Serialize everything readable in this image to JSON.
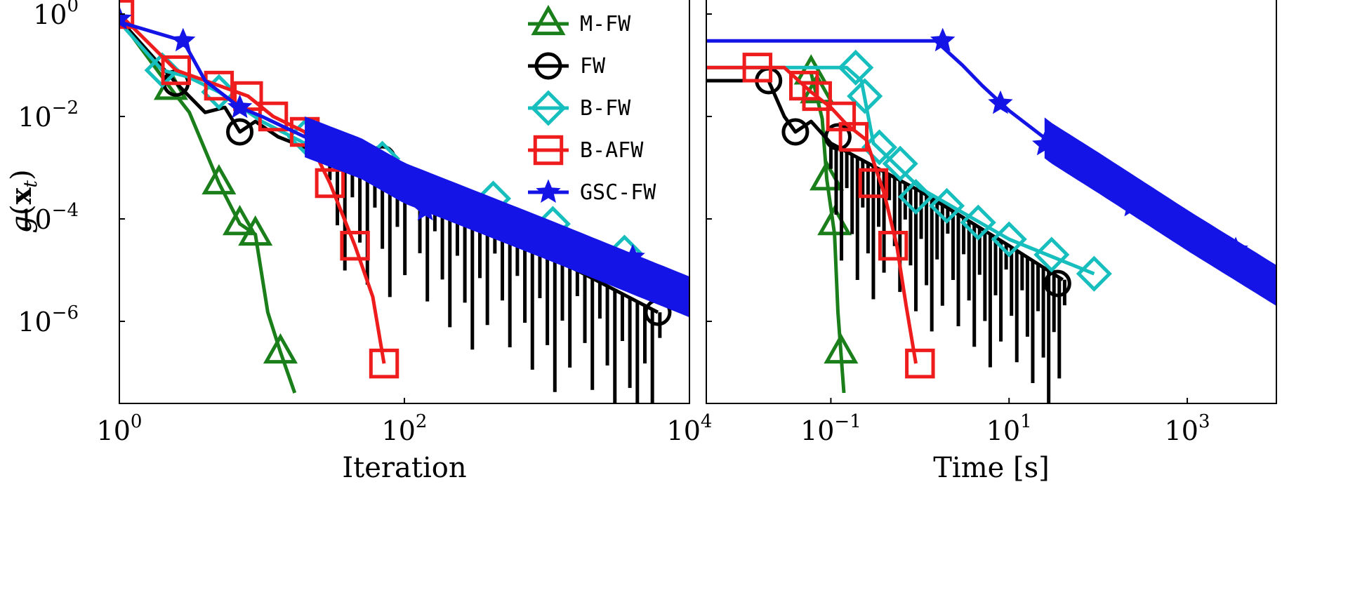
{
  "chart_data": [
    {
      "type": "line",
      "xscale": "log",
      "yscale": "log",
      "xlim": [
        1,
        10000
      ],
      "ylim": [
        3e-08,
        1.2
      ],
      "xlabel": "Iteration",
      "ylabel": "g(x_t)",
      "x_ticks": [
        {
          "value": 1,
          "base": "10",
          "exp": "0"
        },
        {
          "value": 100,
          "base": "10",
          "exp": "2"
        },
        {
          "value": 10000,
          "base": "10",
          "exp": "4"
        }
      ],
      "y_ticks": [
        {
          "value": 1,
          "base": "10",
          "exp": "0"
        },
        {
          "value": 0.01,
          "base": "10",
          "exp": "−2"
        },
        {
          "value": 0.0001,
          "base": "10",
          "exp": "−4"
        },
        {
          "value": 1e-06,
          "base": "10",
          "exp": "−6"
        }
      ],
      "series": [
        {
          "name": "M-FW",
          "color": "#1a7f1a",
          "marker": "triangle",
          "points": [
            [
              1,
              0.8
            ],
            [
              2.3,
              0.035
            ],
            [
              3.1,
              0.012
            ],
            [
              5,
              0.0005
            ],
            [
              7,
              8e-05
            ],
            [
              9,
              5e-05
            ],
            [
              11,
              1.5e-06
            ],
            [
              13.5,
              2.5e-07
            ],
            [
              17,
              4e-08
            ]
          ],
          "markers": [
            [
              2.3,
              0.035
            ],
            [
              5,
              0.0005
            ],
            [
              7,
              8e-05
            ],
            [
              9,
              5e-05
            ],
            [
              13.5,
              2.5e-07
            ]
          ]
        },
        {
          "name": "FW",
          "color": "#000000",
          "marker": "circle",
          "points": [
            [
              1,
              0.8
            ],
            [
              2.5,
              0.045
            ],
            [
              4,
              0.012
            ],
            [
              5.5,
              0.015
            ],
            [
              7,
              0.005
            ],
            [
              9,
              0.008
            ],
            [
              13,
              0.004
            ],
            [
              20,
              0.0025
            ],
            [
              50,
              0.0012
            ],
            [
              70,
              0.0015
            ],
            [
              200,
              0.0002
            ],
            [
              1000,
              2e-05
            ],
            [
              6000,
              1.5e-06
            ]
          ],
          "markers": [
            [
              2.5,
              0.045
            ],
            [
              7,
              0.005
            ],
            [
              70,
              0.0015
            ],
            [
              6000,
              1.5e-06
            ]
          ],
          "spikes": {
            "from": 30,
            "to": 6200,
            "count": 45,
            "depth_min": 0.5,
            "depth_max": 2.6
          }
        },
        {
          "name": "B-FW",
          "color": "#17bebe",
          "marker": "diamond",
          "points": [
            [
              1,
              0.7
            ],
            [
              2,
              0.08
            ],
            [
              3,
              0.06
            ],
            [
              5,
              0.03
            ],
            [
              10,
              0.008
            ],
            [
              20,
              0.003
            ],
            [
              100,
              0.0007
            ],
            [
              400,
              0.00015
            ],
            [
              1000,
              5e-05
            ],
            [
              3000,
              1.5e-05
            ],
            [
              10000,
              5e-06
            ]
          ],
          "markers": [
            [
              2,
              0.08
            ],
            [
              5,
              0.03
            ],
            [
              20,
              0.004
            ],
            [
              70,
              0.0015
            ],
            [
              420,
              0.00025
            ],
            [
              1100,
              8e-05
            ],
            [
              3500,
              2.2e-05
            ]
          ]
        },
        {
          "name": "B-AFW",
          "color": "#ee1c1c",
          "marker": "square",
          "points": [
            [
              1,
              1
            ],
            [
              2.5,
              0.08
            ],
            [
              5,
              0.04
            ],
            [
              8,
              0.025
            ],
            [
              12,
              0.01
            ],
            [
              20,
              0.005
            ],
            [
              30,
              0.0005
            ],
            [
              45,
              3e-05
            ],
            [
              60,
              3e-06
            ],
            [
              72,
              1.5e-07
            ]
          ],
          "markers": [
            [
              1,
              1
            ],
            [
              2.5,
              0.08
            ],
            [
              5,
              0.04
            ],
            [
              8,
              0.025
            ],
            [
              12,
              0.01
            ],
            [
              20,
              0.005
            ],
            [
              30,
              0.0005
            ],
            [
              45,
              3e-05
            ],
            [
              72,
              1.5e-07
            ]
          ]
        },
        {
          "name": "GSC-FW",
          "color": "#1414e6",
          "marker": "star",
          "points": [
            [
              1,
              0.7
            ],
            [
              2.8,
              0.3
            ],
            [
              4,
              0.05
            ],
            [
              7,
              0.015
            ],
            [
              10,
              0.01
            ],
            [
              20,
              0.004
            ],
            [
              50,
              0.0015
            ],
            [
              100,
              0.0005
            ],
            [
              1000,
              4e-05
            ],
            [
              10000,
              3e-06
            ]
          ],
          "markers": [
            [
              1,
              0.8
            ],
            [
              2.8,
              0.3
            ],
            [
              7,
              0.015
            ],
            [
              50,
              0.0015
            ],
            [
              140,
              0.00015
            ],
            [
              460,
              0.00012
            ],
            [
              1100,
              2.5e-05
            ],
            [
              4000,
              1.8e-05
            ]
          ],
          "band": {
            "from": 20,
            "to": 10000,
            "factor": 2.5
          }
        }
      ]
    },
    {
      "type": "line",
      "xscale": "log",
      "yscale": "log",
      "xlim": [
        0.004,
        10000
      ],
      "ylim": [
        3e-08,
        1.2
      ],
      "xlabel": "Time [s]",
      "x_ticks": [
        {
          "value": 0.1,
          "base": "10",
          "exp": "−1"
        },
        {
          "value": 10,
          "base": "10",
          "exp": "1"
        },
        {
          "value": 1000,
          "base": "10",
          "exp": "3"
        }
      ],
      "series": [
        {
          "name": "M-FW",
          "color": "#1a7f1a",
          "marker": "triangle",
          "points": [
            [
              0.06,
              0.07
            ],
            [
              0.08,
              0.009
            ],
            [
              0.09,
              0.0006
            ],
            [
              0.11,
              5e-05
            ],
            [
              0.12,
              1.5e-06
            ],
            [
              0.14,
              4e-08
            ]
          ],
          "markers": [
            [
              0.06,
              0.07
            ],
            [
              0.07,
              0.03
            ],
            [
              0.09,
              0.0006
            ],
            [
              0.11,
              8e-05
            ],
            [
              0.13,
              2.5e-07
            ]
          ]
        },
        {
          "name": "FW",
          "color": "#000000",
          "marker": "circle",
          "points": [
            [
              0.004,
              0.05
            ],
            [
              0.02,
              0.05
            ],
            [
              0.03,
              0.01
            ],
            [
              0.04,
              0.005
            ],
            [
              0.06,
              0.008
            ],
            [
              0.1,
              0.003
            ],
            [
              1,
              0.00035
            ],
            [
              10,
              3e-05
            ],
            [
              40,
              6.5e-06
            ]
          ],
          "markers": [
            [
              0.02,
              0.05
            ],
            [
              0.04,
              0.005
            ],
            [
              0.12,
              0.004
            ],
            [
              35,
              5.5e-06
            ]
          ],
          "spikes": {
            "from": 0.1,
            "to": 42,
            "count": 45,
            "depth_min": 0.5,
            "depth_max": 2.6
          }
        },
        {
          "name": "B-FW",
          "color": "#17bebe",
          "marker": "diamond",
          "points": [
            [
              0.004,
              0.09
            ],
            [
              0.15,
              0.09
            ],
            [
              0.22,
              0.05
            ],
            [
              0.3,
              0.003
            ],
            [
              1,
              0.0004
            ],
            [
              10,
              4e-05
            ],
            [
              90,
              8.5e-06
            ]
          ],
          "markers": [
            [
              0.19,
              0.09
            ],
            [
              0.24,
              0.025
            ],
            [
              0.35,
              0.0025
            ],
            [
              0.6,
              0.0012
            ],
            [
              0.9,
              0.00027
            ],
            [
              2,
              0.00018
            ],
            [
              4.5,
              8.5e-05
            ],
            [
              10,
              4e-05
            ],
            [
              30,
              2e-05
            ],
            [
              90,
              8.5e-06
            ]
          ]
        },
        {
          "name": "B-AFW",
          "color": "#ee1c1c",
          "marker": "square",
          "points": [
            [
              0.004,
              0.09
            ],
            [
              0.03,
              0.09
            ],
            [
              0.06,
              0.03
            ],
            [
              0.1,
              0.015
            ],
            [
              0.15,
              0.007
            ],
            [
              0.25,
              0.0035
            ],
            [
              0.4,
              0.0003
            ],
            [
              0.55,
              3e-05
            ],
            [
              0.7,
              2e-06
            ],
            [
              0.9,
              1.5e-07
            ]
          ],
          "markers": [
            [
              0.015,
              0.09
            ],
            [
              0.05,
              0.04
            ],
            [
              0.07,
              0.025
            ],
            [
              0.13,
              0.01
            ],
            [
              0.18,
              0.004
            ],
            [
              0.3,
              0.0005
            ],
            [
              0.5,
              3e-05
            ],
            [
              1,
              1.5e-07
            ]
          ]
        },
        {
          "name": "GSC-FW",
          "color": "#1414e6",
          "marker": "star",
          "points": [
            [
              0.004,
              0.3
            ],
            [
              1.5,
              0.3
            ],
            [
              3,
              0.1
            ],
            [
              5,
              0.04
            ],
            [
              10,
              0.013
            ],
            [
              30,
              0.003
            ],
            [
              100,
              0.0008
            ],
            [
              1000,
              6e-05
            ],
            [
              10000,
              5e-06
            ]
          ],
          "markers": [
            [
              1.8,
              0.3
            ],
            [
              8,
              0.018
            ],
            [
              25,
              0.0028
            ],
            [
              70,
              0.0015
            ],
            [
              240,
              0.00018
            ],
            [
              600,
              0.00011
            ],
            [
              1300,
              3.5e-05
            ],
            [
              3500,
              2.5e-05
            ]
          ],
          "band": {
            "from": 25,
            "to": 10000,
            "factor": 2.5
          }
        }
      ]
    }
  ],
  "legend": {
    "placement": "top-right of left panel",
    "entries": [
      "M-FW",
      "FW",
      "B-FW",
      "B-AFW",
      "GSC-FW"
    ]
  }
}
